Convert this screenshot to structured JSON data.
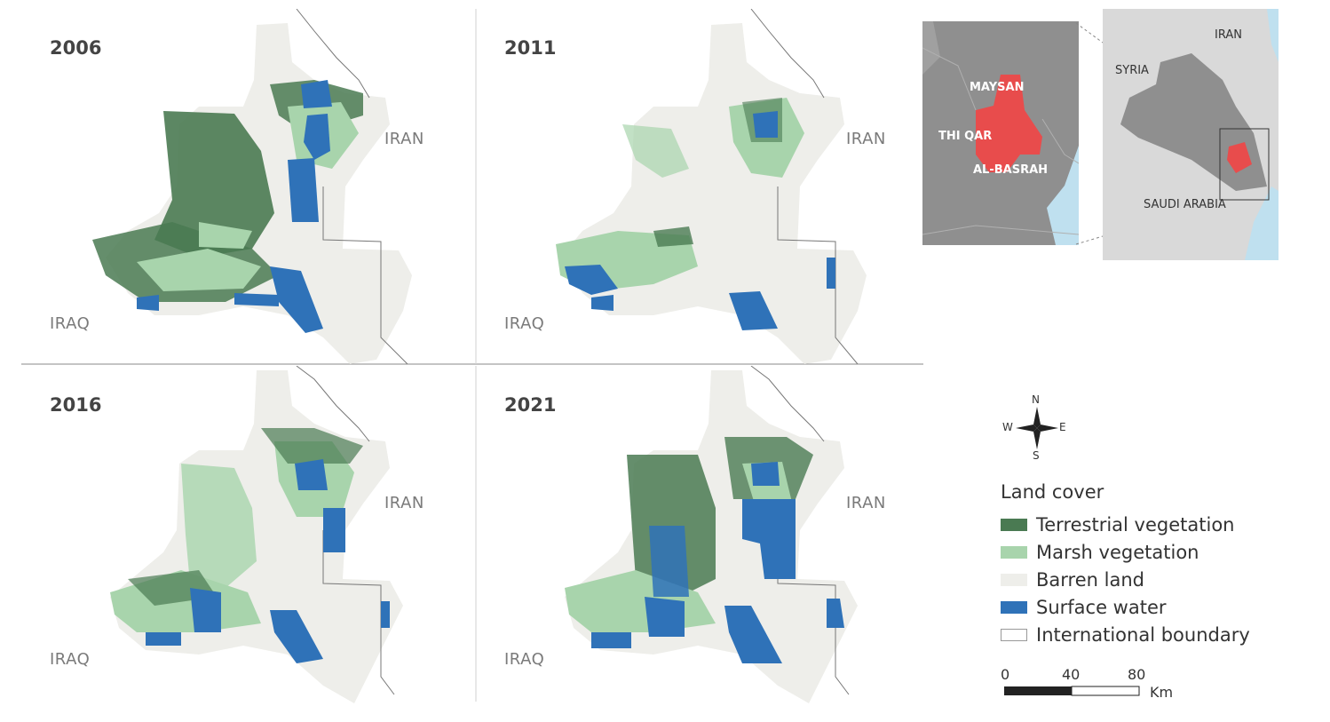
{
  "panels": [
    {
      "year": "2006",
      "country_east": "IRAN",
      "country_west": "IRAQ"
    },
    {
      "year": "2011",
      "country_east": "IRAN",
      "country_west": "IRAQ"
    },
    {
      "year": "2016",
      "country_east": "IRAN",
      "country_west": "IRAQ"
    },
    {
      "year": "2021",
      "country_east": "IRAN",
      "country_west": "IRAQ"
    }
  ],
  "legend": {
    "title": "Land cover",
    "items": [
      {
        "label": "Terrestrial vegetation",
        "color": "#4a7a52"
      },
      {
        "label": "Marsh vegetation",
        "color": "#a8d4ac"
      },
      {
        "label": "Barren land",
        "color": "#eeeeea"
      },
      {
        "label": "Surface water",
        "color": "#2f72b8"
      },
      {
        "label": "International boundary",
        "color": "#ffffff"
      }
    ]
  },
  "compass": {
    "n": "N",
    "s": "S",
    "e": "E",
    "w": "W"
  },
  "scale": {
    "ticks": [
      "0",
      "40",
      "80"
    ],
    "unit": "Km"
  },
  "inset_detail": {
    "labels": [
      "MAYSAN",
      "THI QAR",
      "AL-BASRAH"
    ]
  },
  "inset_country": {
    "labels": [
      "IRAN",
      "SYRIA",
      "SAUDI ARABIA"
    ]
  },
  "colors": {
    "terrestrial": "#4a7a52",
    "marsh": "#a8d4ac",
    "barren": "#eeeeea",
    "water": "#2f72b8",
    "highlight": "#e84c4c",
    "inset_land": "#8f8f8f",
    "inset_sea": "#bfe0ef"
  }
}
